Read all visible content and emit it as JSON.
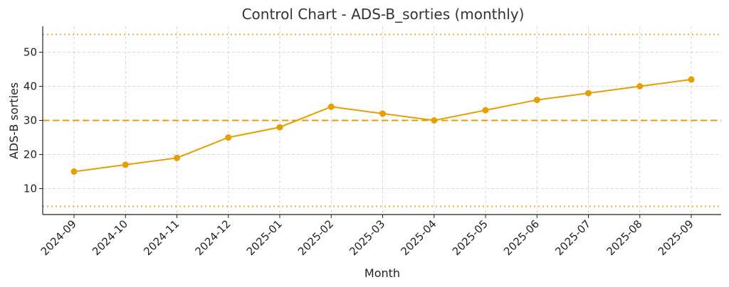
{
  "chart_data": {
    "type": "line",
    "title": "Control Chart - ADS-B_sorties (monthly)",
    "xlabel": "Month",
    "ylabel": "ADS-B sorties",
    "categories": [
      "2024-09",
      "2024-10",
      "2024-11",
      "2024-12",
      "2025-01",
      "2025-02",
      "2025-03",
      "2025-04",
      "2025-05",
      "2025-06",
      "2025-07",
      "2025-08",
      "2025-09"
    ],
    "series": [
      {
        "name": "ADS-B sorties",
        "values": [
          15,
          17,
          19,
          25,
          28,
          34,
          32,
          30,
          33,
          36,
          38,
          40,
          42
        ],
        "color": "#E69F00"
      }
    ],
    "reference_lines": [
      {
        "name": "center-line",
        "value": 30,
        "style": "dashed",
        "color": "#E69F00"
      },
      {
        "name": "upper-control-limit",
        "value": 55.2,
        "style": "dotted",
        "color": "#E6B422"
      },
      {
        "name": "lower-control-limit",
        "value": 4.8,
        "style": "dotted",
        "color": "#E6B422"
      }
    ],
    "ylim": [
      2.4,
      57.6
    ],
    "yticks": [
      10,
      20,
      30,
      40,
      50
    ],
    "grid": true
  }
}
